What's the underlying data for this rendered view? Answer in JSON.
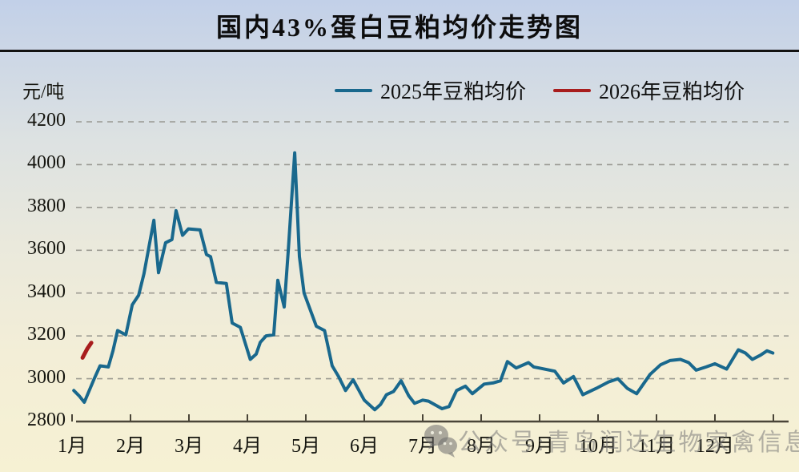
{
  "title": "国内43%蛋白豆粕均价走势图",
  "y_unit": "元/吨",
  "legend": [
    {
      "label": "2025年豆粕均价",
      "color": "#19688d"
    },
    {
      "label": "2026年豆粕均价",
      "color": "#a81d1d"
    }
  ],
  "watermark": {
    "icon": "wechat-icon",
    "text": "公众号:青岛润达生物家禽信息"
  },
  "colors": {
    "gridline": "#8e8d86",
    "axis": "#4a4538",
    "label": "#15150f"
  },
  "chart_data": {
    "type": "line",
    "title": "国内43%蛋白豆粕均价走势图",
    "ylabel": "元/吨",
    "ylim": [
      2800,
      4200
    ],
    "yticks": [
      2800,
      3000,
      3200,
      3400,
      3600,
      3800,
      4000,
      4200
    ],
    "categories": [
      "1月",
      "2月",
      "3月",
      "4月",
      "5月",
      "6月",
      "7月",
      "8月",
      "9月",
      "10月",
      "11月",
      "12月"
    ],
    "x_range": [
      1,
      13
    ],
    "grid": "dashed-horizontal",
    "legend_position": "top",
    "series": [
      {
        "name": "2025年豆粕均价",
        "color": "#19688d",
        "width": 4,
        "points": [
          [
            1.03,
            2945
          ],
          [
            1.12,
            2920
          ],
          [
            1.21,
            2890
          ],
          [
            1.38,
            3000
          ],
          [
            1.48,
            3060
          ],
          [
            1.62,
            3055
          ],
          [
            1.7,
            3130
          ],
          [
            1.78,
            3225
          ],
          [
            1.92,
            3205
          ],
          [
            2.03,
            3345
          ],
          [
            2.14,
            3390
          ],
          [
            2.23,
            3490
          ],
          [
            2.4,
            3740
          ],
          [
            2.48,
            3495
          ],
          [
            2.6,
            3635
          ],
          [
            2.71,
            3650
          ],
          [
            2.78,
            3785
          ],
          [
            2.89,
            3670
          ],
          [
            2.99,
            3700
          ],
          [
            3.19,
            3695
          ],
          [
            3.3,
            3580
          ],
          [
            3.37,
            3570
          ],
          [
            3.47,
            3450
          ],
          [
            3.64,
            3445
          ],
          [
            3.74,
            3260
          ],
          [
            3.88,
            3240
          ],
          [
            3.97,
            3160
          ],
          [
            4.05,
            3090
          ],
          [
            4.15,
            3115
          ],
          [
            4.22,
            3170
          ],
          [
            4.32,
            3200
          ],
          [
            4.45,
            3205
          ],
          [
            4.52,
            3460
          ],
          [
            4.63,
            3335
          ],
          [
            4.7,
            3600
          ],
          [
            4.81,
            4055
          ],
          [
            4.89,
            3570
          ],
          [
            4.97,
            3400
          ],
          [
            5.18,
            3245
          ],
          [
            5.32,
            3225
          ],
          [
            5.45,
            3060
          ],
          [
            5.56,
            3010
          ],
          [
            5.68,
            2945
          ],
          [
            5.81,
            2995
          ],
          [
            6.0,
            2900
          ],
          [
            6.18,
            2855
          ],
          [
            6.28,
            2880
          ],
          [
            6.38,
            2925
          ],
          [
            6.5,
            2940
          ],
          [
            6.63,
            2990
          ],
          [
            6.76,
            2920
          ],
          [
            6.86,
            2885
          ],
          [
            7.0,
            2900
          ],
          [
            7.1,
            2895
          ],
          [
            7.33,
            2860
          ],
          [
            7.45,
            2870
          ],
          [
            7.58,
            2945
          ],
          [
            7.73,
            2965
          ],
          [
            7.85,
            2930
          ],
          [
            8.05,
            2975
          ],
          [
            8.2,
            2980
          ],
          [
            8.33,
            2990
          ],
          [
            8.45,
            3080
          ],
          [
            8.6,
            3050
          ],
          [
            8.81,
            3075
          ],
          [
            8.9,
            3055
          ],
          [
            8.99,
            3050
          ],
          [
            9.26,
            3035
          ],
          [
            9.41,
            2980
          ],
          [
            9.58,
            3010
          ],
          [
            9.74,
            2925
          ],
          [
            9.97,
            2955
          ],
          [
            10.18,
            2985
          ],
          [
            10.34,
            3000
          ],
          [
            10.5,
            2955
          ],
          [
            10.66,
            2930
          ],
          [
            10.89,
            3020
          ],
          [
            11.07,
            3065
          ],
          [
            11.23,
            3085
          ],
          [
            11.41,
            3090
          ],
          [
            11.55,
            3075
          ],
          [
            11.68,
            3040
          ],
          [
            11.85,
            3055
          ],
          [
            12.0,
            3070
          ],
          [
            12.2,
            3045
          ],
          [
            12.4,
            3135
          ],
          [
            12.52,
            3120
          ],
          [
            12.64,
            3090
          ],
          [
            12.78,
            3110
          ],
          [
            12.89,
            3130
          ],
          [
            12.99,
            3120
          ]
        ]
      },
      {
        "name": "2026年豆粕均价",
        "color": "#a81d1d",
        "width": 5,
        "points": [
          [
            1.18,
            3098
          ],
          [
            1.26,
            3140
          ],
          [
            1.33,
            3168
          ]
        ]
      }
    ]
  }
}
